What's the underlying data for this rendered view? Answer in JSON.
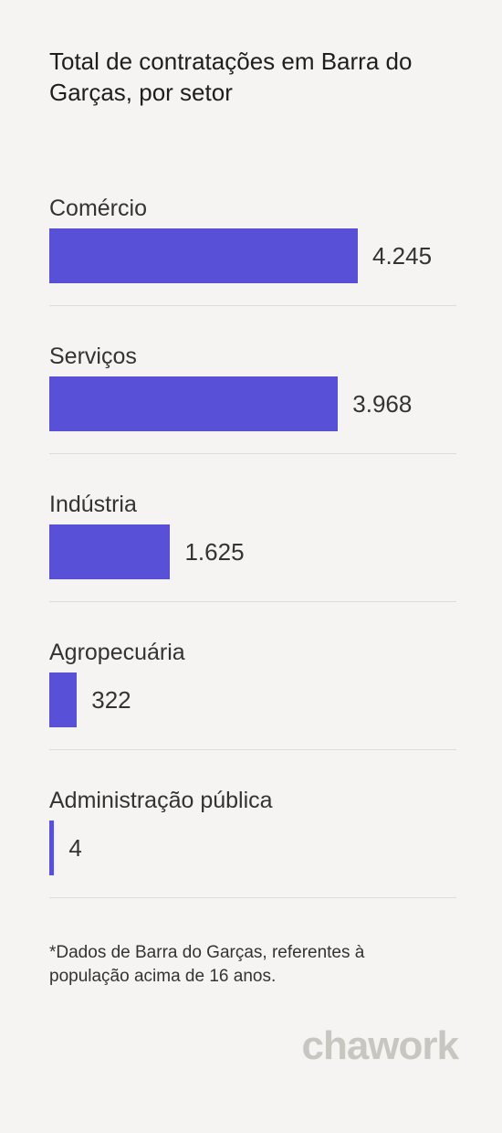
{
  "chart_data": {
    "type": "hbar",
    "title": "Total de contratações em Barra do Garças, por setor",
    "categories": [
      "Comércio",
      "Serviços",
      "Indústria",
      "Agropecuária",
      "Administração pública"
    ],
    "values": [
      4245,
      3968,
      1625,
      322,
      4
    ],
    "value_labels": [
      "4.245",
      "3.968",
      "1.625",
      "322",
      "4"
    ],
    "color": "#5850d6",
    "note": "*Dados de Barra do Garças, referentes à população acima de 16 anos."
  },
  "brand": "chawork"
}
